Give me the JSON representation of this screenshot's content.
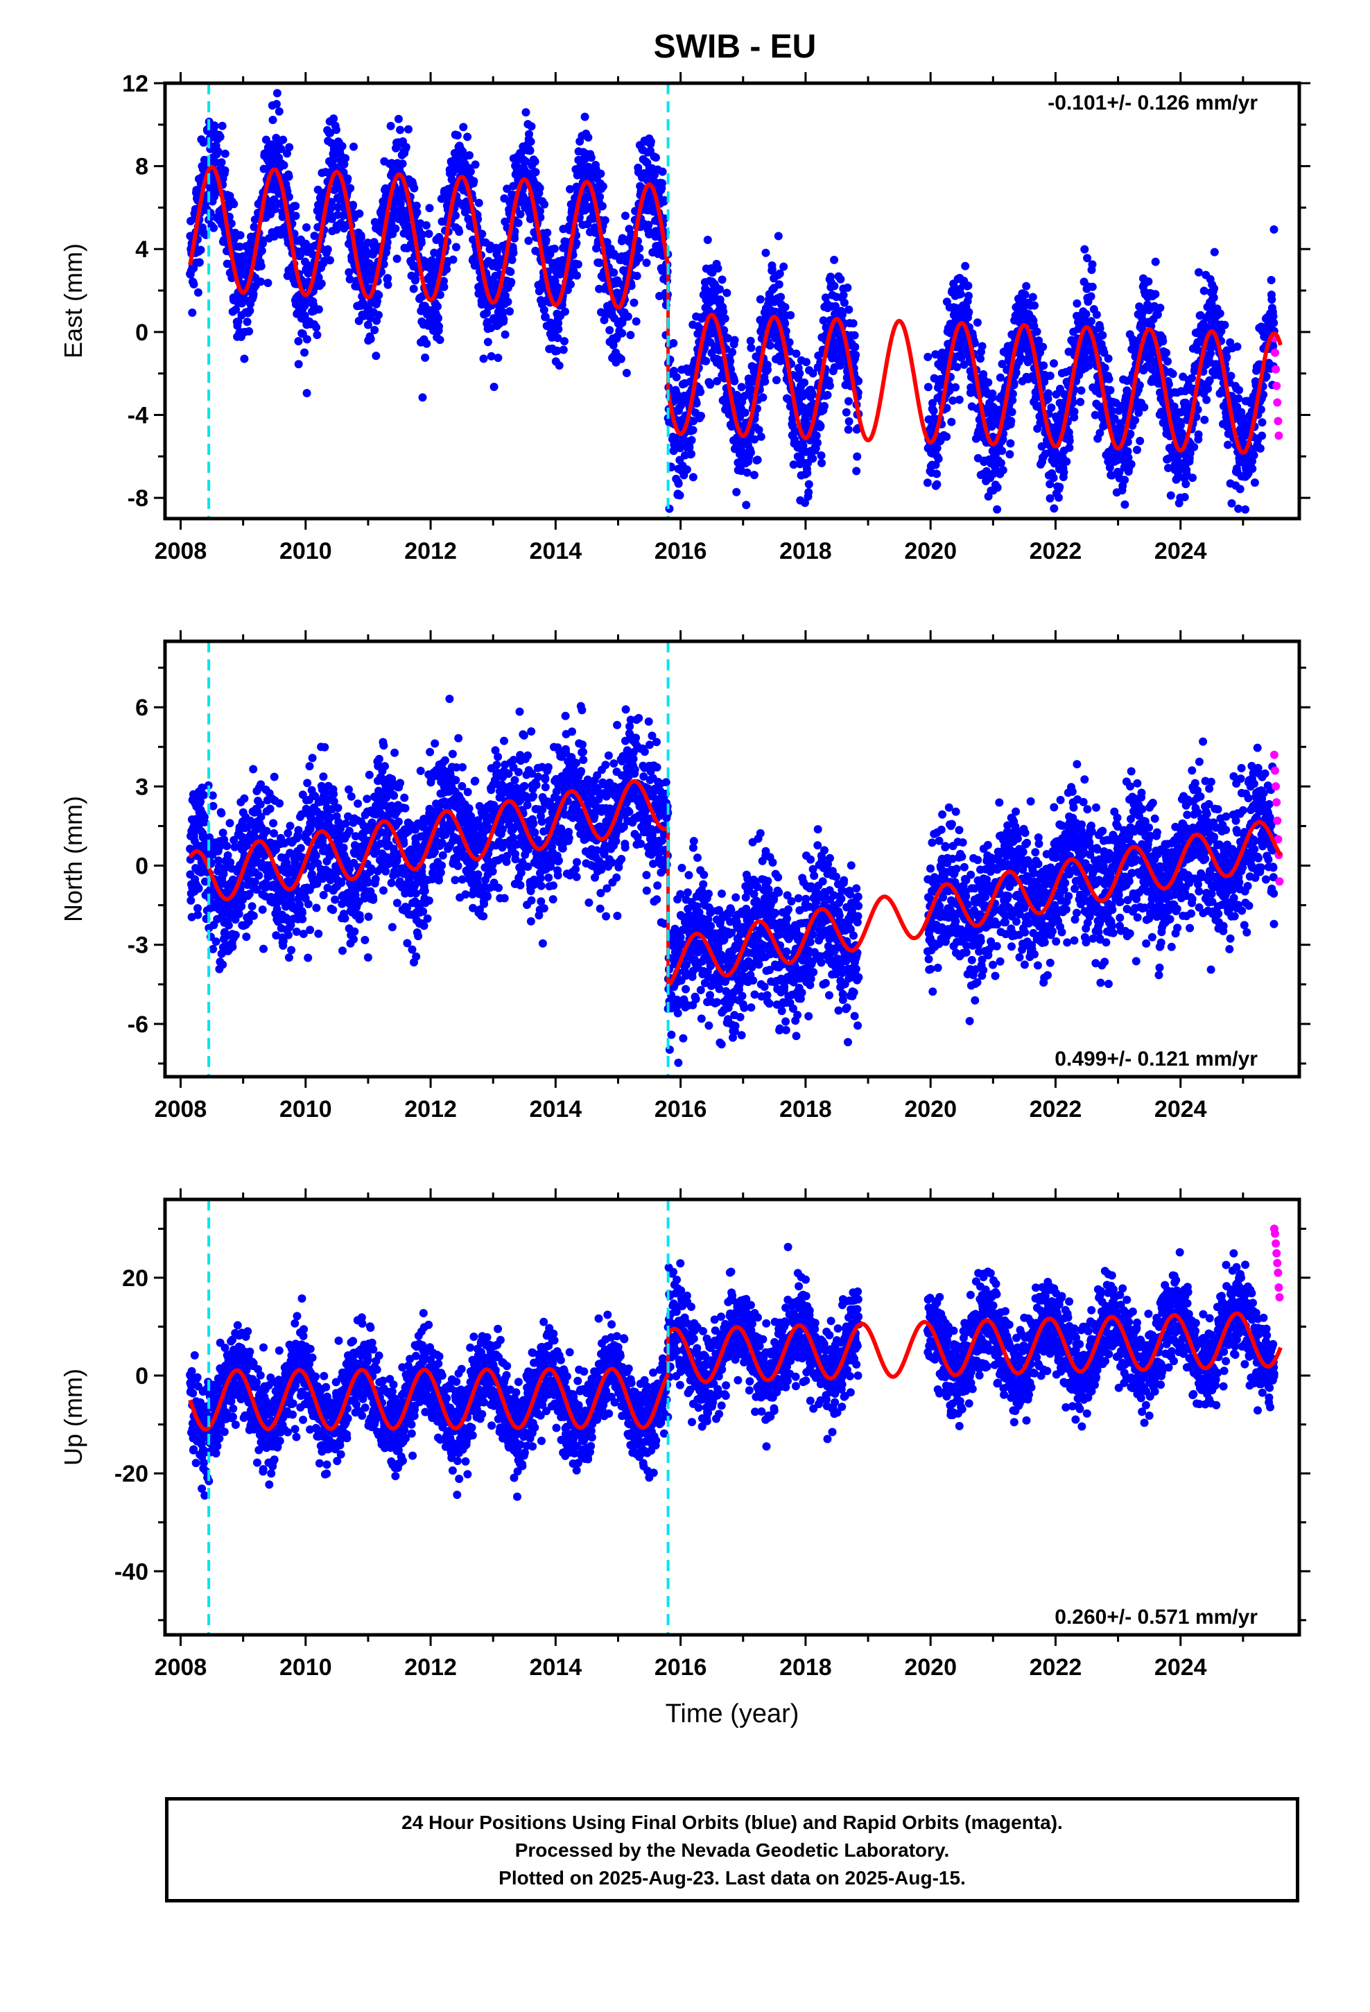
{
  "title": "SWIB - EU",
  "footer": {
    "line1": "24 Hour Positions Using Final Orbits (blue) and Rapid Orbits (magenta).",
    "line2": "Processed by the Nevada Geodetic Laboratory.",
    "line3": "Plotted on 2025-Aug-23. Last data on 2025-Aug-15."
  },
  "colors": {
    "final_orbits": "#0000ff",
    "rapid_orbits": "#ff00ff",
    "model": "#ff0000",
    "offsets": "#00e5ee"
  },
  "chart_data": [
    {
      "type": "scatter",
      "ylabel": "East (mm)",
      "xlabel": "",
      "xlim": [
        2007.75,
        2025.9
      ],
      "ylim": [
        -9,
        12
      ],
      "xticks": [
        2008,
        2010,
        2012,
        2014,
        2016,
        2018,
        2020,
        2022,
        2024
      ],
      "yticks": [
        -8,
        -4,
        0,
        4,
        8,
        12
      ],
      "rate": "-0.101+/- 0.126 mm/yr",
      "rate_position": "top-right",
      "offset_lines": [
        2008.45,
        2015.8
      ],
      "data_gap": [
        2018.85,
        2019.95
      ],
      "data_end": 2025.55,
      "rapid_start": 2025.5,
      "segments": [
        {
          "x0": 2008.15,
          "x1": 2015.8,
          "y0": 5.0,
          "slope": -0.12,
          "amp": 3.0,
          "phase": 2009.25
        },
        {
          "x0": 2015.8,
          "x1": 2025.6,
          "y0": -2.0,
          "slope": -0.1,
          "amp": 2.9,
          "phase": 2009.25
        }
      ],
      "noise": 1.4,
      "rapid_values": [
        -0.3,
        -1.0,
        -1.8,
        -2.6,
        -3.4,
        -4.3,
        -5.0
      ]
    },
    {
      "type": "scatter",
      "ylabel": "North (mm)",
      "xlabel": "",
      "xlim": [
        2007.75,
        2025.9
      ],
      "ylim": [
        -8,
        8.5
      ],
      "xticks": [
        2008,
        2010,
        2012,
        2014,
        2016,
        2018,
        2020,
        2022,
        2024
      ],
      "yticks": [
        -6,
        -3,
        0,
        3,
        6
      ],
      "rate": "0.499+/- 0.121 mm/yr",
      "rate_position": "bottom-right",
      "offset_lines": [
        2008.45,
        2015.8
      ],
      "data_gap": [
        2018.85,
        2019.95
      ],
      "data_end": 2025.55,
      "rapid_start": 2025.5,
      "segments": [
        {
          "x0": 2008.15,
          "x1": 2015.8,
          "y0": -0.5,
          "slope": 0.38,
          "amp": 1.0,
          "phase": 2009.0
        },
        {
          "x0": 2015.8,
          "x1": 2025.6,
          "y0": -3.7,
          "slope": 0.47,
          "amp": 0.9,
          "phase": 2009.0
        }
      ],
      "noise": 1.3,
      "rapid_values": [
        4.2,
        3.6,
        3.0,
        2.4,
        1.7,
        1.0,
        0.4,
        -0.6
      ]
    },
    {
      "type": "scatter",
      "ylabel": "Up (mm)",
      "xlabel": "Time (year)",
      "xlim": [
        2007.75,
        2025.9
      ],
      "ylim": [
        -53,
        36
      ],
      "xticks": [
        2008,
        2010,
        2012,
        2014,
        2016,
        2018,
        2020,
        2022,
        2024
      ],
      "yticks": [
        -40,
        -20,
        0,
        20
      ],
      "rate": "0.260+/- 0.571 mm/yr",
      "rate_position": "bottom-right",
      "offset_lines": [
        2008.45,
        2015.8
      ],
      "data_gap": [
        2018.85,
        2019.95
      ],
      "data_end": 2025.55,
      "rapid_start": 2025.5,
      "segments": [
        {
          "x0": 2008.15,
          "x1": 2015.8,
          "y0": -5.0,
          "slope": 0.05,
          "amp": 6.0,
          "phase": 2008.65
        },
        {
          "x0": 2015.8,
          "x1": 2025.6,
          "y0": 4.0,
          "slope": 0.35,
          "amp": 5.5,
          "phase": 2008.65
        }
      ],
      "noise": 4.5,
      "rapid_values": [
        30,
        29,
        27,
        25,
        23,
        21,
        18,
        16
      ]
    }
  ]
}
